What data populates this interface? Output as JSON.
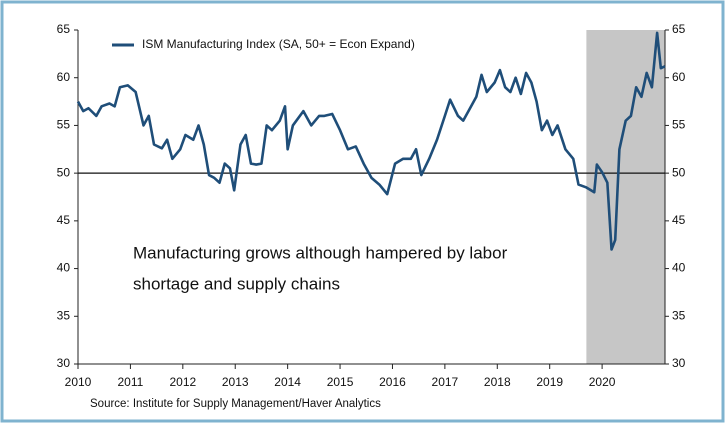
{
  "chart_data": {
    "type": "line",
    "x": [
      2010.0,
      2010.1,
      2010.2,
      2010.35,
      2010.45,
      2010.6,
      2010.7,
      2010.8,
      2010.95,
      2011.1,
      2011.25,
      2011.35,
      2011.45,
      2011.6,
      2011.7,
      2011.8,
      2011.95,
      2012.05,
      2012.2,
      2012.3,
      2012.4,
      2012.5,
      2012.6,
      2012.7,
      2012.8,
      2012.9,
      2012.98,
      2013.1,
      2013.2,
      2013.3,
      2013.4,
      2013.5,
      2013.6,
      2013.7,
      2013.85,
      2013.95,
      2014.0,
      2014.1,
      2014.3,
      2014.45,
      2014.6,
      2014.7,
      2014.85,
      2015.0,
      2015.15,
      2015.3,
      2015.45,
      2015.6,
      2015.75,
      2015.9,
      2016.05,
      2016.2,
      2016.35,
      2016.45,
      2016.55,
      2016.7,
      2016.85,
      2017.0,
      2017.1,
      2017.25,
      2017.35,
      2017.45,
      2017.6,
      2017.7,
      2017.8,
      2017.95,
      2018.05,
      2018.15,
      2018.25,
      2018.35,
      2018.45,
      2018.55,
      2018.65,
      2018.75,
      2018.85,
      2018.95,
      2019.05,
      2019.15,
      2019.3,
      2019.45,
      2019.55,
      2019.7,
      2019.85,
      2019.9,
      2020.0,
      2020.1,
      2020.18,
      2020.25,
      2020.33,
      2020.45,
      2020.55,
      2020.65,
      2020.75,
      2020.85,
      2020.95,
      2021.05,
      2021.12,
      2021.2
    ],
    "series": [
      {
        "name": "ISM Manufacturing Index (SA, 50+ = Econ Expand)",
        "color": "#1f4e79",
        "values": [
          57.5,
          56.5,
          56.8,
          56.0,
          57.0,
          57.3,
          57.0,
          59.0,
          59.2,
          58.5,
          55.0,
          56.0,
          53.0,
          52.6,
          53.5,
          51.5,
          52.5,
          54.0,
          53.5,
          55.0,
          53.0,
          49.8,
          49.5,
          49.0,
          51.0,
          50.5,
          48.2,
          53.0,
          54.0,
          51.0,
          50.9,
          51.0,
          55.0,
          54.5,
          55.5,
          57.0,
          52.5,
          55.0,
          56.5,
          55.0,
          56.0,
          56.0,
          56.2,
          54.5,
          52.5,
          52.8,
          51.0,
          49.5,
          48.8,
          47.8,
          51.0,
          51.5,
          51.5,
          52.5,
          49.8,
          51.5,
          53.5,
          56.0,
          57.7,
          56.0,
          55.5,
          56.5,
          58.0,
          60.3,
          58.5,
          59.5,
          60.8,
          59.0,
          58.5,
          60.0,
          58.3,
          60.5,
          59.5,
          57.5,
          54.5,
          55.5,
          54.0,
          55.0,
          52.5,
          51.5,
          48.8,
          48.5,
          48.0,
          50.9,
          50.1,
          49.0,
          42.0,
          43.0,
          52.5,
          55.5,
          56.0,
          59.0,
          58.0,
          60.5,
          59.0,
          64.7,
          61.0,
          61.2
        ]
      }
    ],
    "xlim": [
      2010,
      2021.2
    ],
    "xticks": [
      2010,
      2011,
      2012,
      2013,
      2014,
      2015,
      2016,
      2017,
      2018,
      2019,
      2020
    ],
    "ylim": [
      30,
      65
    ],
    "yticks": [
      30,
      35,
      40,
      45,
      50,
      55,
      60,
      65
    ],
    "y2lim": [
      30,
      65
    ],
    "y2ticks": [
      30,
      35,
      40,
      45,
      50,
      55,
      60,
      65
    ],
    "reference_line": 50,
    "shaded_x": [
      2019.7,
      2021.2
    ],
    "shade_color": "#c6c6c6",
    "annotation": [
      "Manufacturing grows although hampered by labor",
      "shortage and supply chains"
    ],
    "source": "Source:  Institute for Supply Management/Haver Analytics"
  }
}
